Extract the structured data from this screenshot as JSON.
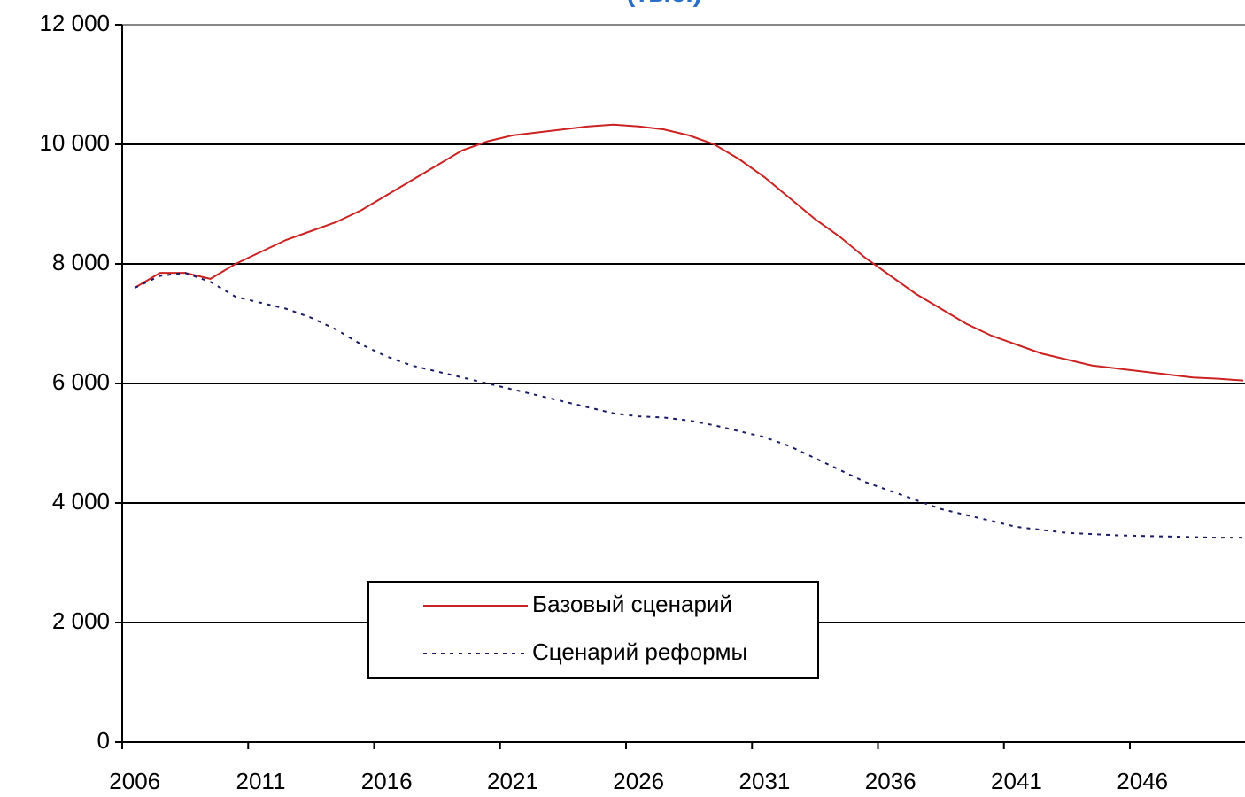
{
  "chart_data": {
    "type": "line",
    "title": "(тыс.)",
    "categories": [
      "2006",
      null,
      null,
      null,
      null,
      "2011",
      null,
      null,
      null,
      null,
      "2016",
      null,
      null,
      null,
      null,
      "2021",
      null,
      null,
      null,
      null,
      "2026",
      null,
      null,
      null,
      null,
      "2031",
      null,
      null,
      null,
      null,
      "2036",
      null,
      null,
      null,
      null,
      "2041",
      null,
      null,
      null,
      null,
      "2046",
      null,
      null,
      null,
      null
    ],
    "series": [
      {
        "name": "Базовый сценарий",
        "color": "#cc2222",
        "dash": "solid",
        "values": [
          7600,
          7850,
          7850,
          7750,
          8000,
          8200,
          8400,
          8550,
          8700,
          8900,
          9150,
          9400,
          9650,
          9900,
          10050,
          10150,
          10200,
          10250,
          10300,
          10330,
          10300,
          10250,
          10150,
          10000,
          9750,
          9450,
          9100,
          8750,
          8450,
          8100,
          7800,
          7500,
          7250,
          7000,
          6800,
          6650,
          6500,
          6400,
          6300,
          6250,
          6200,
          6150,
          6100,
          6080,
          6050
        ]
      },
      {
        "name": "Сценарий реформы",
        "color": "#1a1a66",
        "dash": "dotted",
        "values": [
          7600,
          7800,
          7850,
          7700,
          7450,
          7350,
          7250,
          7100,
          6900,
          6650,
          6450,
          6300,
          6200,
          6100,
          6000,
          5900,
          5800,
          5700,
          5600,
          5500,
          5450,
          5430,
          5380,
          5300,
          5200,
          5100,
          4950,
          4750,
          4550,
          4350,
          4200,
          4050,
          3900,
          3800,
          3700,
          3600,
          3550,
          3500,
          3480,
          3460,
          3450,
          3440,
          3430,
          3420,
          3420
        ]
      }
    ],
    "ylim": [
      0,
      12000
    ],
    "yticks": [
      0,
      {
        "value": 2000,
        "label": "2 000"
      },
      {
        "value": 4000,
        "label": "4 000"
      },
      {
        "value": 6000,
        "label": "6 000"
      },
      {
        "value": 8000,
        "label": "8 000"
      },
      {
        "value": 10000,
        "label": "10 000"
      },
      {
        "value": 12000,
        "label": "12 000"
      }
    ],
    "grid": true,
    "legend": "bottom-center"
  }
}
